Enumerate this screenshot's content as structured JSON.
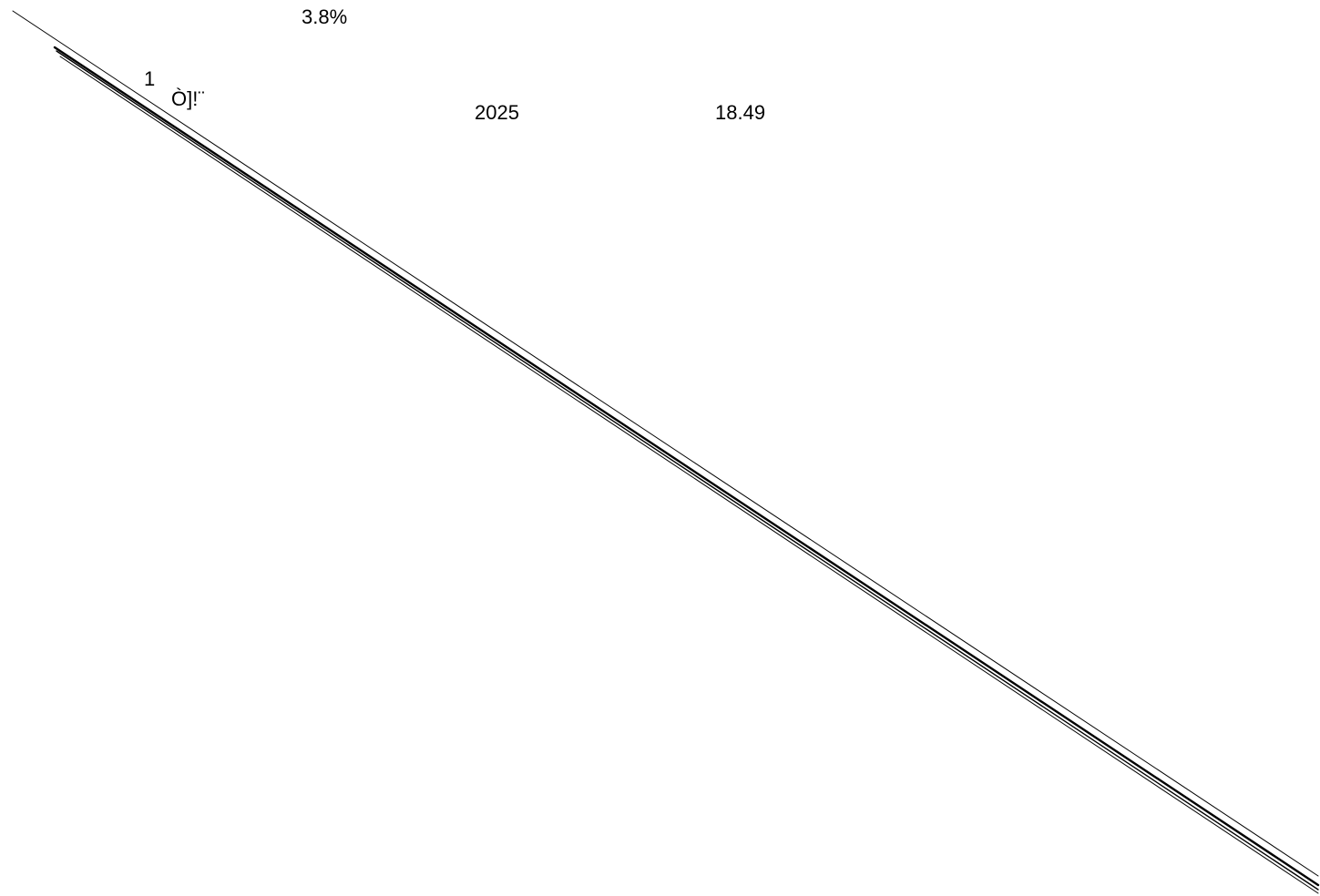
{
  "labels": {
    "percent": "3.8%",
    "index": "1",
    "glyphs": "Ò]!¨",
    "year": "2025",
    "value": "18.49"
  },
  "colors": {
    "background": "#ffffff",
    "ink": "#000000"
  }
}
